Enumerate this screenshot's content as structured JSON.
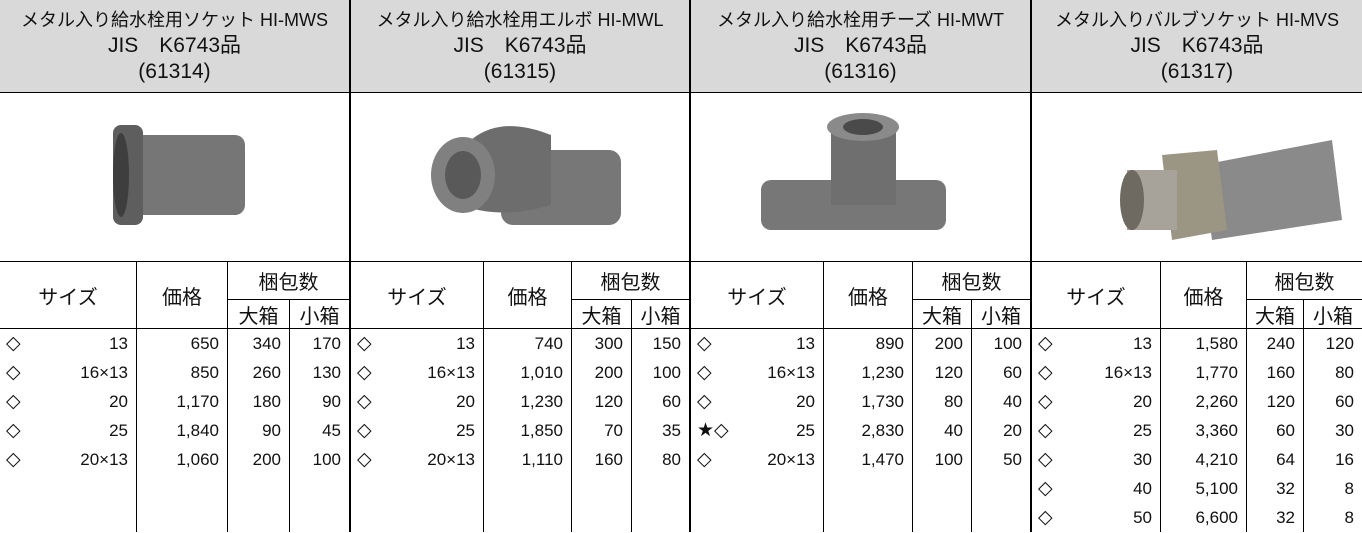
{
  "headers": {
    "size": "サイズ",
    "price": "価格",
    "pack": "梱包数",
    "large": "大箱",
    "small": "小箱"
  },
  "products": [
    {
      "title": [
        "メタル入り給水栓用ソケット HI-MWS",
        "JIS　K6743品",
        "(61314)"
      ],
      "rows": [
        {
          "mark": "◇",
          "size": "13",
          "price": "650",
          "large": "340",
          "small": "170"
        },
        {
          "mark": "◇",
          "size": "16×13",
          "price": "850",
          "large": "260",
          "small": "130"
        },
        {
          "mark": "◇",
          "size": "20",
          "price": "1,170",
          "large": "180",
          "small": "90"
        },
        {
          "mark": "◇",
          "size": "25",
          "price": "1,840",
          "large": "90",
          "small": "45"
        },
        {
          "mark": "◇",
          "size": "20×13",
          "price": "1,060",
          "large": "200",
          "small": "100"
        }
      ]
    },
    {
      "title": [
        "メタル入り給水栓用エルボ HI-MWL",
        "JIS　K6743品",
        "(61315)"
      ],
      "rows": [
        {
          "mark": "◇",
          "size": "13",
          "price": "740",
          "large": "300",
          "small": "150"
        },
        {
          "mark": "◇",
          "size": "16×13",
          "price": "1,010",
          "large": "200",
          "small": "100"
        },
        {
          "mark": "◇",
          "size": "20",
          "price": "1,230",
          "large": "120",
          "small": "60"
        },
        {
          "mark": "◇",
          "size": "25",
          "price": "1,850",
          "large": "70",
          "small": "35"
        },
        {
          "mark": "◇",
          "size": "20×13",
          "price": "1,110",
          "large": "160",
          "small": "80"
        }
      ]
    },
    {
      "title": [
        "メタル入り給水栓用チーズ HI-MWT",
        "JIS　K6743品",
        "(61316)"
      ],
      "rows": [
        {
          "mark": "◇",
          "size": "13",
          "price": "890",
          "large": "200",
          "small": "100"
        },
        {
          "mark": "◇",
          "size": "16×13",
          "price": "1,230",
          "large": "120",
          "small": "60"
        },
        {
          "mark": "◇",
          "size": "20",
          "price": "1,730",
          "large": "80",
          "small": "40"
        },
        {
          "mark": "★◇",
          "size": "25",
          "price": "2,830",
          "large": "40",
          "small": "20"
        },
        {
          "mark": "◇",
          "size": "20×13",
          "price": "1,470",
          "large": "100",
          "small": "50"
        }
      ]
    },
    {
      "title": [
        "メタル入りバルブソケット HI-MVS",
        "JIS　K6743品",
        "(61317)"
      ],
      "rows": [
        {
          "mark": "◇",
          "size": "13",
          "price": "1,580",
          "large": "240",
          "small": "120"
        },
        {
          "mark": "◇",
          "size": "16×13",
          "price": "1,770",
          "large": "160",
          "small": "80"
        },
        {
          "mark": "◇",
          "size": "20",
          "price": "2,260",
          "large": "120",
          "small": "60"
        },
        {
          "mark": "◇",
          "size": "25",
          "price": "3,360",
          "large": "60",
          "small": "30"
        },
        {
          "mark": "◇",
          "size": "30",
          "price": "4,210",
          "large": "64",
          "small": "16"
        },
        {
          "mark": "◇",
          "size": "40",
          "price": "5,100",
          "large": "32",
          "small": "8"
        },
        {
          "mark": "◇",
          "size": "50",
          "price": "6,600",
          "large": "32",
          "small": "8"
        }
      ]
    }
  ]
}
